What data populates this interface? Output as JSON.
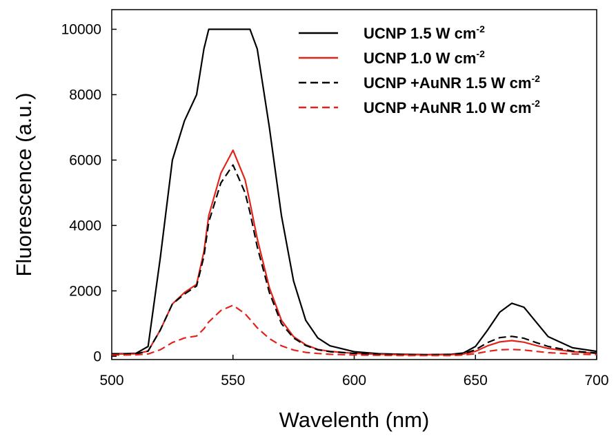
{
  "chart_data": {
    "type": "line",
    "xlabel": "Wavelenth (nm)",
    "ylabel": "Fluorescence (a.u.)",
    "xlim": [
      500,
      700
    ],
    "ylim": [
      -100,
      10600
    ],
    "xticks": [
      "500",
      "550",
      "600",
      "650",
      "700"
    ],
    "yticks": [
      "0",
      "2000",
      "4000",
      "6000",
      "8000",
      "10000"
    ],
    "grid": false,
    "legend_position": "top-right",
    "x": [
      500,
      505,
      510,
      515,
      520,
      525,
      530,
      535,
      538,
      540,
      545,
      550,
      555,
      557,
      560,
      565,
      570,
      575,
      580,
      585,
      590,
      600,
      610,
      620,
      630,
      640,
      645,
      650,
      655,
      660,
      665,
      670,
      675,
      680,
      690,
      700
    ],
    "series": [
      {
        "name": "UCNP 1.5 W cm",
        "sup": "-2",
        "color": "#000000",
        "dash": false,
        "values": [
          80,
          80,
          90,
          300,
          3000,
          6000,
          7200,
          8000,
          9400,
          10000,
          10000,
          10000,
          10000,
          10000,
          9400,
          7000,
          4300,
          2300,
          1100,
          560,
          320,
          140,
          80,
          60,
          50,
          60,
          100,
          300,
          800,
          1350,
          1620,
          1500,
          1050,
          600,
          260,
          150
        ]
      },
      {
        "name": "UCNP 1.0 W cm",
        "sup": "-2",
        "color": "#e2231a",
        "dash": false,
        "values": [
          70,
          70,
          75,
          160,
          800,
          1600,
          1950,
          2200,
          3200,
          4300,
          5600,
          6300,
          5400,
          4700,
          3600,
          2100,
          1100,
          600,
          350,
          210,
          150,
          90,
          60,
          50,
          45,
          50,
          70,
          150,
          320,
          440,
          480,
          430,
          330,
          240,
          140,
          90
        ]
      },
      {
        "name": "UCNP +AuNR 1.5 W cm",
        "sup": "-2",
        "color": "#000000",
        "dash": true,
        "values": [
          70,
          70,
          75,
          160,
          800,
          1600,
          1900,
          2150,
          3050,
          4100,
          5300,
          5850,
          5000,
          4400,
          3350,
          1950,
          1000,
          560,
          330,
          200,
          140,
          90,
          60,
          50,
          45,
          55,
          80,
          200,
          420,
          570,
          610,
          550,
          420,
          300,
          160,
          100
        ]
      },
      {
        "name": "UCNP +AuNR 1.0 W cm",
        "sup": "-2",
        "color": "#e2231a",
        "dash": true,
        "values": [
          40,
          40,
          45,
          70,
          200,
          420,
          560,
          620,
          840,
          1050,
          1400,
          1560,
          1300,
          1130,
          870,
          540,
          320,
          190,
          120,
          85,
          60,
          40,
          30,
          25,
          22,
          25,
          40,
          80,
          150,
          200,
          210,
          190,
          150,
          110,
          70,
          50
        ]
      }
    ]
  }
}
